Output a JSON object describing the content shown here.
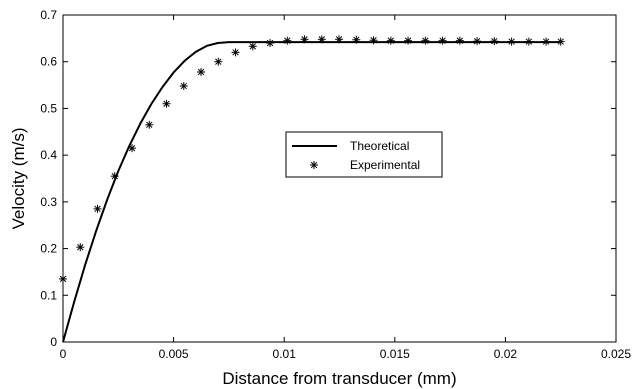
{
  "chart_data": {
    "type": "line",
    "title": "",
    "xlabel": "Distance from transducer (mm)",
    "ylabel": "Velocity (m/s)",
    "xlim": [
      0,
      0.025
    ],
    "ylim": [
      0,
      0.7
    ],
    "xticks": [
      0,
      0.005,
      0.01,
      0.015,
      0.02,
      0.025
    ],
    "xtick_labels": [
      "0",
      "0.005",
      "0.01",
      "0.015",
      "0.02",
      "0.025"
    ],
    "yticks": [
      0,
      0.1,
      0.2,
      0.3,
      0.4,
      0.5,
      0.6,
      0.7
    ],
    "ytick_labels": [
      "0",
      "0.1",
      "0.2",
      "0.3",
      "0.4",
      "0.5",
      "0.6",
      "0.7"
    ],
    "grid": false,
    "legend_position": "center-right",
    "series": [
      {
        "name": "Theoretical",
        "style": "line",
        "color": "#000000",
        "x": [
          0,
          0.0005,
          0.001,
          0.0015,
          0.002,
          0.0025,
          0.003,
          0.0035,
          0.004,
          0.0045,
          0.005,
          0.0055,
          0.006,
          0.0065,
          0.007,
          0.0075,
          0.0078,
          0.01,
          0.015,
          0.02,
          0.0225
        ],
        "y": [
          0,
          0.085,
          0.165,
          0.238,
          0.305,
          0.366,
          0.42,
          0.468,
          0.51,
          0.546,
          0.577,
          0.602,
          0.621,
          0.634,
          0.64,
          0.642,
          0.642,
          0.642,
          0.642,
          0.642,
          0.642
        ]
      },
      {
        "name": "Experimental",
        "style": "marker",
        "marker": "asterisk",
        "color": "#000000",
        "x": [
          0,
          0.00078,
          0.00156,
          0.00234,
          0.00312,
          0.0039,
          0.00468,
          0.00546,
          0.00624,
          0.00702,
          0.0078,
          0.00858,
          0.00936,
          0.01014,
          0.01092,
          0.0117,
          0.01248,
          0.01326,
          0.01404,
          0.01482,
          0.0156,
          0.01638,
          0.01716,
          0.01794,
          0.01872,
          0.0195,
          0.02028,
          0.02106,
          0.02184,
          0.0225
        ],
        "y": [
          0.135,
          0.203,
          0.285,
          0.355,
          0.415,
          0.465,
          0.51,
          0.548,
          0.578,
          0.6,
          0.62,
          0.633,
          0.64,
          0.645,
          0.648,
          0.648,
          0.648,
          0.647,
          0.646,
          0.645,
          0.645,
          0.645,
          0.645,
          0.645,
          0.644,
          0.644,
          0.643,
          0.643,
          0.643,
          0.643
        ]
      }
    ]
  }
}
